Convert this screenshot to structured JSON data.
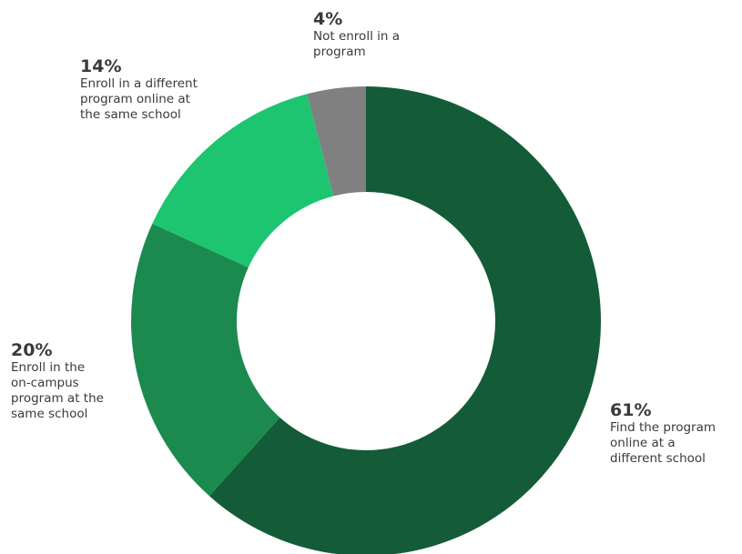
{
  "chart_data": {
    "type": "pie",
    "donut": true,
    "slices": [
      {
        "value": 61,
        "pct_label": "61%",
        "label_lines": [
          "Find the program",
          "online at a",
          "different school"
        ],
        "color": "#135c37"
      },
      {
        "value": 20,
        "pct_label": "20%",
        "label_lines": [
          "Enroll in the",
          "on-campus",
          "program at the",
          "same school"
        ],
        "color": "#1c8a4f"
      },
      {
        "value": 14,
        "pct_label": "14%",
        "label_lines": [
          "Enroll in a different",
          "program online at",
          "the same school"
        ],
        "color": "#1dc570"
      },
      {
        "value": 4,
        "pct_label": "4%",
        "label_lines": [
          "Not enroll in a",
          "program"
        ],
        "color": "#808080"
      }
    ]
  }
}
